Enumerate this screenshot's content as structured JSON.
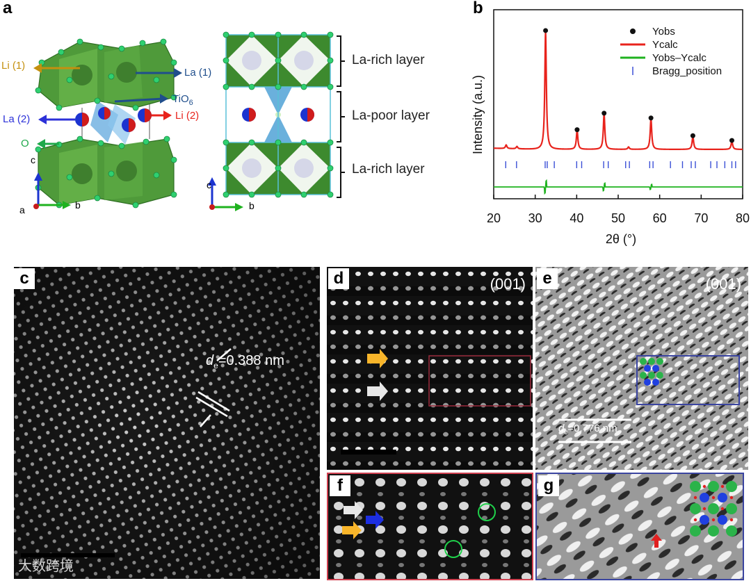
{
  "panels": {
    "a": "a",
    "b": "b",
    "c": "c",
    "d": "d",
    "e": "e",
    "f": "f",
    "g": "g"
  },
  "panel_a": {
    "labels": {
      "li1": "Li (1)",
      "la1": "La (1)",
      "tio6": "TiO",
      "tio6_sub": "6",
      "la2": "La (2)",
      "li2": "Li (2)",
      "o": "O"
    },
    "axes_left": {
      "c": "c",
      "a": "a",
      "b": "b"
    },
    "axes_right": {
      "c": "c",
      "b": "b"
    },
    "layers": [
      "La-rich layer",
      "La-poor layer",
      "La-rich layer"
    ]
  },
  "chart_data": {
    "type": "line",
    "title": "",
    "xlabel": "2θ (°)",
    "ylabel": "Intensity (a.u.)",
    "xlim": [
      20,
      80
    ],
    "xticks": [
      20,
      30,
      40,
      50,
      60,
      70,
      80
    ],
    "legend": [
      {
        "name": "Yobs",
        "marker": "dot",
        "color": "#111111"
      },
      {
        "name": "Ycalc",
        "marker": "line",
        "color": "#e8231c"
      },
      {
        "name": "Yobs–Ycalc",
        "marker": "line",
        "color": "#1fb21f"
      },
      {
        "name": "Bragg_position",
        "marker": "tick",
        "color": "#3a4fd6"
      }
    ],
    "peaks": [
      {
        "x": 23.0,
        "h": 0.03
      },
      {
        "x": 25.6,
        "h": 0.02
      },
      {
        "x": 32.5,
        "h": 1.0
      },
      {
        "x": 40.1,
        "h": 0.16
      },
      {
        "x": 46.6,
        "h": 0.3
      },
      {
        "x": 52.5,
        "h": 0.02
      },
      {
        "x": 57.9,
        "h": 0.26
      },
      {
        "x": 68.0,
        "h": 0.11
      },
      {
        "x": 77.4,
        "h": 0.07
      }
    ],
    "bragg_positions": [
      22.9,
      25.5,
      32.4,
      32.9,
      34.6,
      40.0,
      41.2,
      46.5,
      47.6,
      51.8,
      52.7,
      57.6,
      58.4,
      62.6,
      65.5,
      67.6,
      68.6,
      72.3,
      73.8,
      75.7,
      77.4,
      78.3
    ],
    "diff_spikes": [
      {
        "x": 32.5,
        "d": 0.05
      },
      {
        "x": 46.6,
        "d": 0.03
      },
      {
        "x": 57.9,
        "d": 0.02
      }
    ]
  },
  "panel_c": {
    "d_label": "d",
    "d_sub": "e",
    "d_value": "=0.388 nm"
  },
  "panel_d": {
    "zone": "(001)"
  },
  "panel_e": {
    "zone": "(001)",
    "d_label": "d",
    "d_sub": "c",
    "d_value": "=0.776 nm"
  },
  "watermark": "大数跨境",
  "colors": {
    "accent_red": "#e8231c",
    "accent_green": "#1fb21f",
    "tick_blue": "#3a4fd6",
    "panel_f_border": "#d04050",
    "panel_g_border": "#3a44a0"
  }
}
